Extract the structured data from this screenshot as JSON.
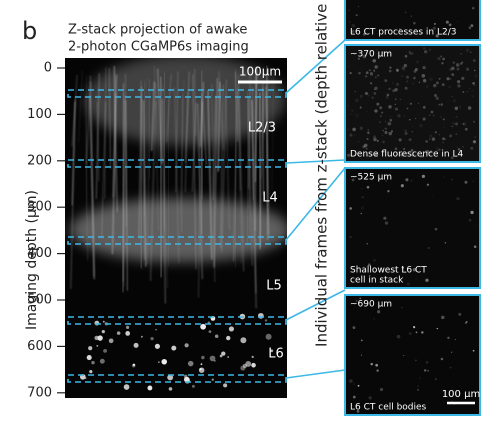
{
  "panel_label": "b",
  "left_panel": {
    "title": [
      "Z-stack projection of awake",
      "2-photon CGaMP6s  imaging"
    ],
    "y_axis_label": "Imaging depth (μm)",
    "y_ticks": [
      0,
      100,
      200,
      300,
      400,
      500,
      600,
      700
    ],
    "scale_bar": "100μm",
    "layers": [
      "L2/3",
      "L4",
      "L5",
      "L6"
    ]
  },
  "right_panel": {
    "label": "Individual frames from z-stack (depth relative t",
    "frames": [
      {
        "caption": "L6 CT processes in L2/3"
      },
      {
        "depth": "~370 μm",
        "caption": "Dense fluorescence in L4"
      },
      {
        "depth": "~525 μm",
        "caption": [
          "Shallowest L6 CT",
          "cell in stack"
        ]
      },
      {
        "depth": "~690 μm",
        "caption": "L6 CT cell bodies",
        "scale_bar": "100 μm"
      }
    ]
  }
}
